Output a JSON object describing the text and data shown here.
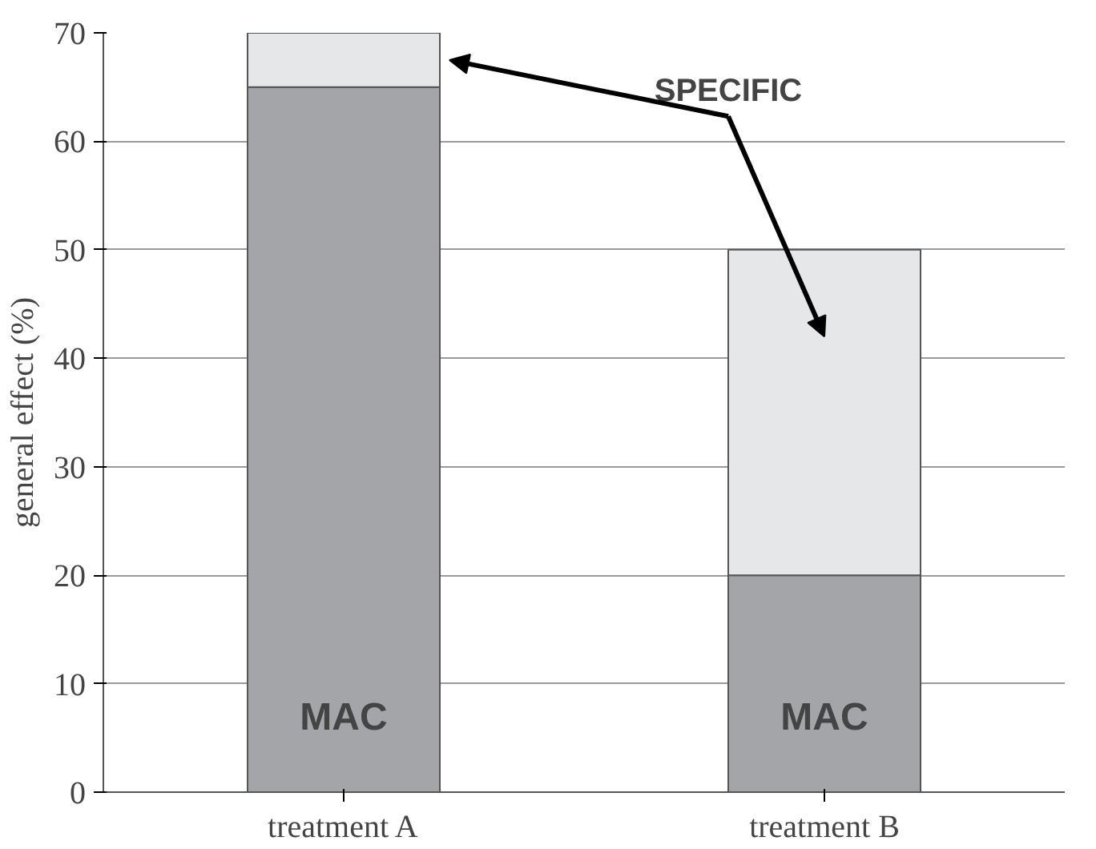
{
  "chart_data": {
    "type": "bar",
    "stacked": true,
    "ylabel": "general effect (%)",
    "categories": [
      "treatment A",
      "treatment B"
    ],
    "series": [
      {
        "name": "MAC",
        "color": "#a3a5a8",
        "values": [
          65,
          20
        ]
      },
      {
        "name": "SPECIFIC",
        "color": "#e6e7e9",
        "values": [
          5,
          30
        ]
      }
    ],
    "ylim": [
      0,
      70
    ],
    "yticks": [
      0,
      10,
      20,
      30,
      40,
      50,
      60,
      70
    ],
    "grid": "y"
  }
}
